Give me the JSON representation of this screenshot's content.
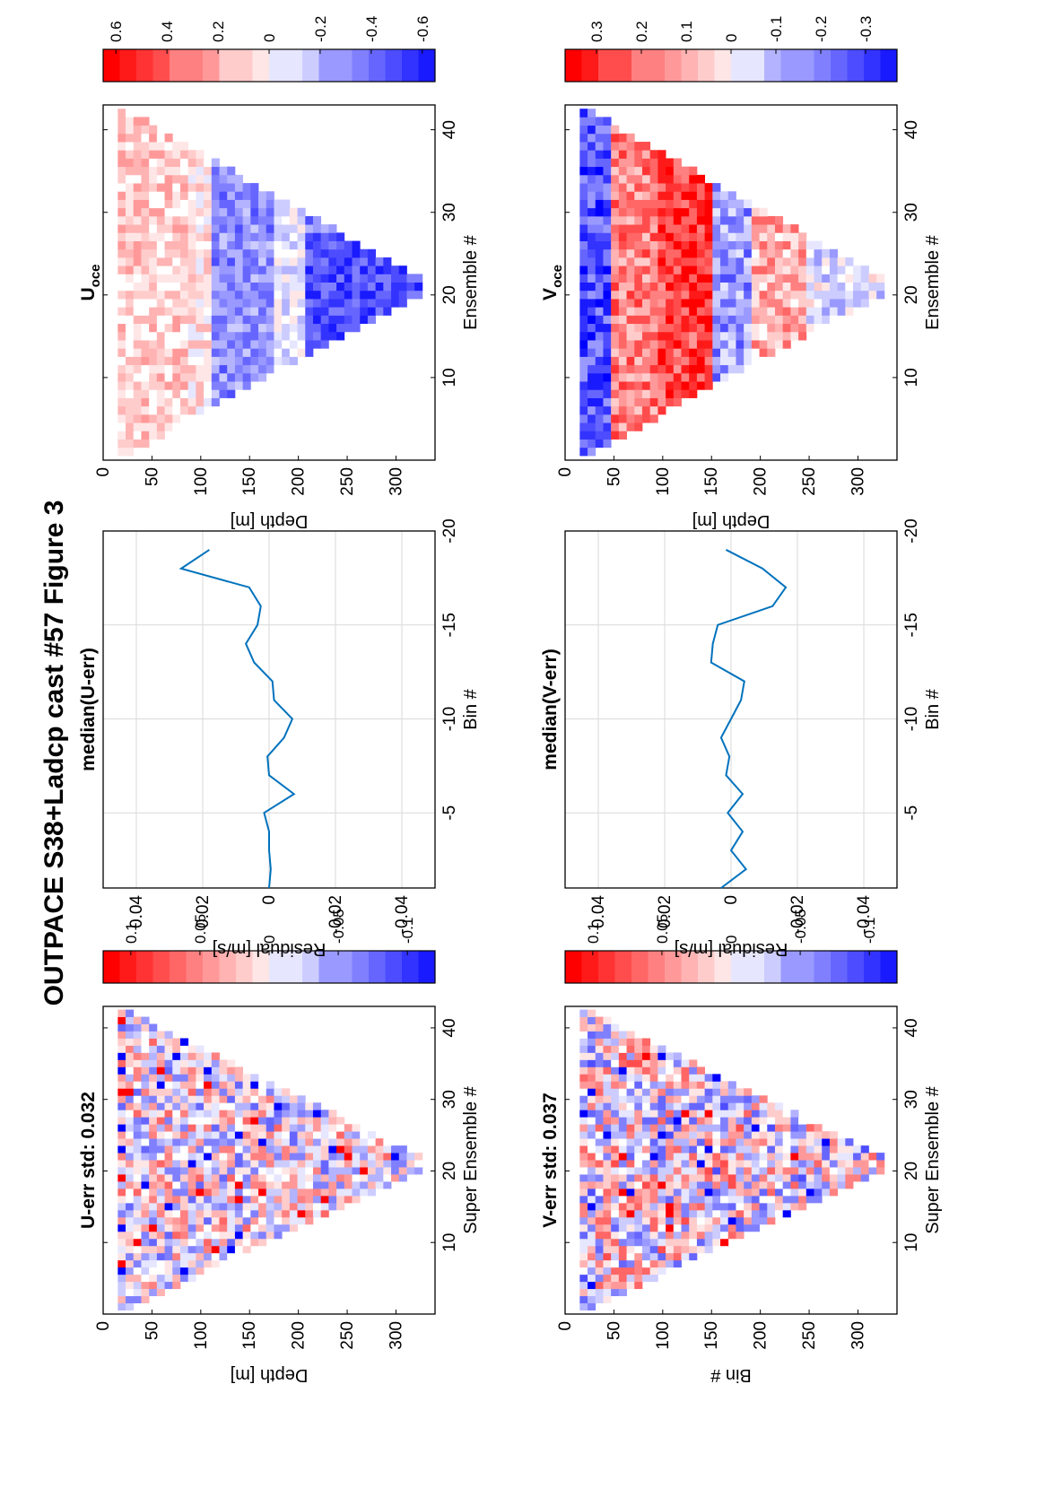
{
  "figure_title": "OUTPACE S38+Ladcp cast #57  Figure 3",
  "colors": {
    "positive": "#ff0000",
    "negative": "#0000ff",
    "zero": "#ffffff",
    "line": "#0072bd",
    "grid": "#d9d9d9",
    "axes": "#000000"
  },
  "chart_data": [
    {
      "id": "u_err",
      "type": "heatmap",
      "title": "U-err std: 0.032",
      "xlabel": "Super Ensemble #",
      "ylabel": "Depth [m]",
      "x_ticks": [
        "10",
        "20",
        "30",
        "40"
      ],
      "y_ticks": [
        "0",
        "50",
        "100",
        "150",
        "200",
        "250",
        "300"
      ],
      "xlim": [
        0,
        43
      ],
      "ylim": [
        0,
        340
      ],
      "colorbar": {
        "clim": [
          -0.12,
          0.12
        ],
        "tick_values": [
          0.1,
          0.05,
          0,
          -0.05,
          -0.1
        ],
        "tick_labels": [
          "0.1",
          "0.05",
          "0",
          "-0.05",
          "-0.1"
        ]
      },
      "field": {
        "turn_ensemble": 21,
        "max_depth": 325,
        "depth_top": 15,
        "cell_height": 8,
        "noise_amp": 0.07,
        "seed": 11
      }
    },
    {
      "id": "med_u",
      "type": "line",
      "title": "median(U-err)",
      "xlabel": "Residual [m/s]",
      "ylabel": "Bin #",
      "x_ticks": [
        "-0.04",
        "-0.02",
        "0",
        "0.02",
        "0.04"
      ],
      "y_ticks": [
        "-5",
        "-10",
        "-15",
        "-20"
      ],
      "xlim": [
        -0.05,
        0.05
      ],
      "ylim": [
        -20,
        -1
      ],
      "grid": true,
      "series": [
        {
          "bins": [
            -1,
            -2,
            -3,
            -4,
            -5,
            -6,
            -7,
            -8,
            -9,
            -10,
            -11,
            -12,
            -13,
            -14,
            -15,
            -16,
            -17,
            -18,
            -19
          ],
          "values": [
            0.0,
            -0.0005,
            0.0,
            0.0,
            0.0015,
            -0.0075,
            0.0,
            0.0005,
            -0.0045,
            -0.007,
            -0.0015,
            -0.001,
            0.0045,
            0.007,
            0.0035,
            0.0025,
            0.006,
            0.0265,
            0.018
          ]
        }
      ]
    },
    {
      "id": "u_oce",
      "type": "heatmap",
      "title": "U",
      "title_subscript": "oce",
      "xlabel": "Ensemble #",
      "ylabel": "Depth [m]",
      "x_ticks": [
        "10",
        "20",
        "30",
        "40"
      ],
      "y_ticks": [
        "0",
        "50",
        "100",
        "150",
        "200",
        "250",
        "300"
      ],
      "xlim": [
        0,
        43
      ],
      "ylim": [
        0,
        340
      ],
      "colorbar": {
        "clim": [
          -0.65,
          0.65
        ],
        "tick_values": [
          0.6,
          0.4,
          0.2,
          0,
          -0.2,
          -0.4,
          -0.6
        ],
        "tick_labels": [
          "0.6",
          "0.4",
          "0.2",
          "0",
          "-0.2",
          "-0.4",
          "-0.6"
        ]
      },
      "field": {
        "turn_ensemble": 21,
        "max_depth": 325,
        "depth_top": 15,
        "cell_height": 8,
        "noise_amp": 0.05,
        "seed": 23
      }
    },
    {
      "id": "v_err",
      "type": "heatmap",
      "title": "V-err std: 0.037",
      "xlabel": "Super Ensemble #",
      "ylabel": "Bin #",
      "x_ticks": [
        "10",
        "20",
        "30",
        "40"
      ],
      "y_ticks": [
        "0",
        "50",
        "100",
        "150",
        "200",
        "250",
        "300"
      ],
      "xlim": [
        0,
        43
      ],
      "ylim": [
        0,
        340
      ],
      "colorbar": {
        "clim": [
          -0.12,
          0.12
        ],
        "tick_values": [
          0.1,
          0.05,
          0,
          -0.05,
          -0.1
        ],
        "tick_labels": [
          "0.1",
          "0.05",
          "0",
          "-0.05",
          "-0.1"
        ]
      },
      "field": {
        "turn_ensemble": 21,
        "max_depth": 325,
        "depth_top": 15,
        "cell_height": 8,
        "noise_amp": 0.08,
        "seed": 37
      }
    },
    {
      "id": "med_v",
      "type": "line",
      "title": "median(V-err)",
      "xlabel": "Residual [m/s]",
      "ylabel": "Bin #",
      "x_ticks": [
        "-0.04",
        "-0.02",
        "0",
        "0.02",
        "0.04"
      ],
      "y_ticks": [
        "-5",
        "-10",
        "-15",
        "-20"
      ],
      "xlim": [
        -0.05,
        0.05
      ],
      "ylim": [
        -20,
        -1
      ],
      "grid": true,
      "series": [
        {
          "bins": [
            -1,
            -2,
            -3,
            -4,
            -5,
            -6,
            -7,
            -8,
            -9,
            -10,
            -11,
            -12,
            -13,
            -14,
            -15,
            -16,
            -17,
            -18,
            -19
          ],
          "values": [
            0.003,
            -0.0045,
            0.0,
            -0.0035,
            0.001,
            -0.0035,
            0.0015,
            0.0005,
            0.003,
            0.0,
            -0.003,
            -0.004,
            0.006,
            0.0055,
            0.004,
            -0.0125,
            -0.0165,
            -0.0095,
            0.0015
          ]
        }
      ]
    },
    {
      "id": "v_oce",
      "type": "heatmap",
      "title": "V",
      "title_subscript": "oce",
      "xlabel": "Ensemble #",
      "ylabel": "Depth [m]",
      "x_ticks": [
        "10",
        "20",
        "30",
        "40"
      ],
      "y_ticks": [
        "0",
        "50",
        "100",
        "150",
        "200",
        "250",
        "300"
      ],
      "xlim": [
        0,
        43
      ],
      "ylim": [
        0,
        340
      ],
      "colorbar": {
        "clim": [
          -0.37,
          0.37
        ],
        "tick_values": [
          0.3,
          0.2,
          0.1,
          0,
          -0.1,
          -0.2,
          -0.3
        ],
        "tick_labels": [
          "0.3",
          "0.2",
          "0.1",
          "0",
          "-0.1",
          "-0.2",
          "-0.3"
        ]
      },
      "field": {
        "turn_ensemble": 21,
        "max_depth": 325,
        "depth_top": 15,
        "cell_height": 8,
        "noise_amp": 0.04,
        "seed": 51
      }
    }
  ]
}
